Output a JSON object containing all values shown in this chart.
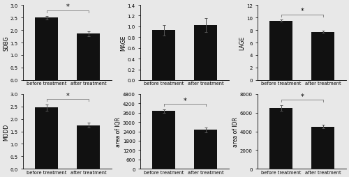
{
  "panels": [
    {
      "ylabel": "SDBG",
      "ylim": [
        0,
        3.0
      ],
      "yticks": [
        0.0,
        0.5,
        1.0,
        1.5,
        2.0,
        2.5,
        3.0
      ],
      "before_val": 2.5,
      "before_err": 0.07,
      "after_val": 1.85,
      "after_err": 0.09,
      "significant": true
    },
    {
      "ylabel": "MAGE",
      "ylim": [
        0,
        1.4
      ],
      "yticks": [
        0.0,
        0.2,
        0.4,
        0.6,
        0.8,
        1.0,
        1.2,
        1.4
      ],
      "before_val": 0.93,
      "before_err": 0.1,
      "after_val": 1.03,
      "after_err": 0.13,
      "significant": false
    },
    {
      "ylabel": "LAGE",
      "ylim": [
        0,
        12
      ],
      "yticks": [
        0,
        2,
        4,
        6,
        8,
        10,
        12
      ],
      "before_val": 9.5,
      "before_err": 0.12,
      "after_val": 7.7,
      "after_err": 0.18,
      "significant": true
    },
    {
      "ylabel": "MODD",
      "ylim": [
        0,
        3.0
      ],
      "yticks": [
        0.0,
        0.5,
        1.0,
        1.5,
        2.0,
        2.5,
        3.0
      ],
      "before_val": 2.45,
      "before_err": 0.12,
      "after_val": 1.75,
      "after_err": 0.1,
      "significant": true
    },
    {
      "ylabel": "area of IQR",
      "ylim": [
        0,
        4800
      ],
      "yticks": [
        0,
        600,
        1200,
        1800,
        2400,
        3000,
        3600,
        4200,
        4800
      ],
      "before_val": 3700,
      "before_err": 110,
      "after_val": 2500,
      "after_err": 150,
      "significant": true
    },
    {
      "ylabel": "area of IDR",
      "ylim": [
        0,
        8000
      ],
      "yticks": [
        0,
        2000,
        4000,
        6000,
        8000
      ],
      "before_val": 6500,
      "before_err": 280,
      "after_val": 4500,
      "after_err": 180,
      "significant": true
    }
  ],
  "bar_color": "#111111",
  "bar_width": 0.55,
  "categories": [
    "before treatment",
    "after treatment"
  ],
  "background_color": "#e8e8e8",
  "tick_fontsize": 5.0,
  "label_fontsize": 5.5,
  "xlabel_fontsize": 4.8
}
